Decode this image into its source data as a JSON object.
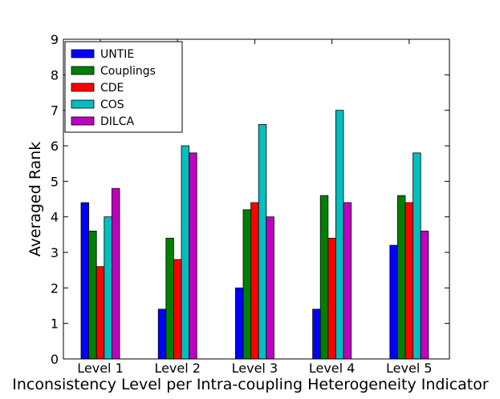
{
  "chart_data": {
    "type": "bar",
    "title": "",
    "xlabel": "Inconsistency Level per Intra-coupling Heterogeneity Indicator",
    "ylabel": "Averaged Rank",
    "ylim": [
      0,
      9
    ],
    "yticks": [
      "0",
      "1",
      "2",
      "3",
      "4",
      "5",
      "6",
      "7",
      "8",
      "9"
    ],
    "categories": [
      "Level 1",
      "Level 2",
      "Level 3",
      "Level 4",
      "Level 5"
    ],
    "legend_position": "top-left",
    "series": [
      {
        "name": "UNTIE",
        "color": "#0000ff",
        "values": [
          4.4,
          1.4,
          2.0,
          1.4,
          3.2
        ]
      },
      {
        "name": "Couplings",
        "color": "#008000",
        "values": [
          3.6,
          3.4,
          4.2,
          4.6,
          4.6
        ]
      },
      {
        "name": "CDE",
        "color": "#ff0000",
        "values": [
          2.6,
          2.8,
          4.4,
          3.4,
          4.4
        ]
      },
      {
        "name": "COS",
        "color": "#00bfbf",
        "values": [
          4.0,
          6.0,
          6.6,
          7.0,
          5.8
        ]
      },
      {
        "name": "DILCA",
        "color": "#bf00bf",
        "values": [
          4.8,
          5.8,
          4.0,
          4.4,
          3.6
        ]
      }
    ]
  }
}
